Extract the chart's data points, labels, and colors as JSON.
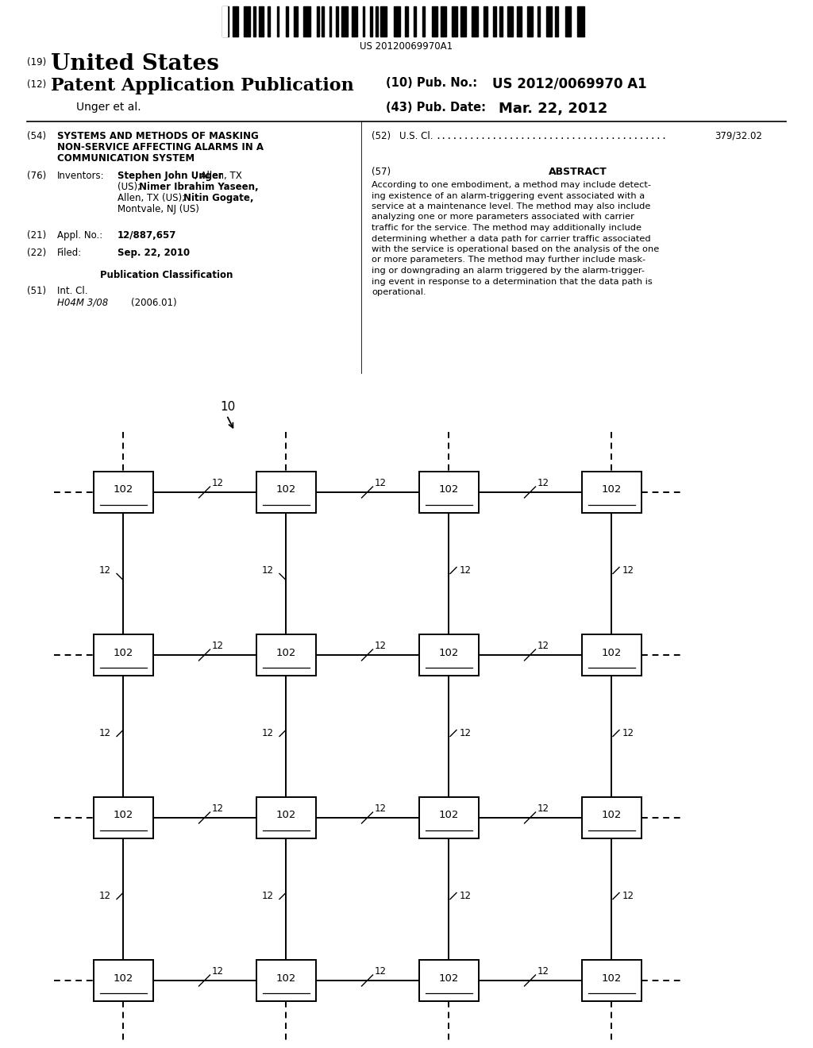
{
  "background_color": "#ffffff",
  "barcode_text": "US 20120069970A1",
  "header_country_num": "(19)",
  "header_country": "United States",
  "header_type_num": "(12)",
  "header_type": "Patent Application Publication",
  "header_pub_num_label": "(10) Pub. No.:",
  "header_pub_num": "US 2012/0069970 A1",
  "header_authors": "Unger et al.",
  "header_date_label": "(43) Pub. Date:",
  "header_date": "Mar. 22, 2012",
  "title_num": "(54)",
  "title_line1": "SYSTEMS AND METHODS OF MASKING",
  "title_line2": "NON-SERVICE AFFECTING ALARMS IN A",
  "title_line3": "COMMUNICATION SYSTEM",
  "inventors_num": "(76)",
  "inventors_label": "Inventors:",
  "inv1_bold": "Stephen John Unger",
  "inv1_rest": ", Allen, TX",
  "inv2_pre": "(US); ",
  "inv2_bold": "Nimer Ibrahim Yaseen,",
  "inv3_pre": "Allen, TX (US); ",
  "inv3_bold": "Nitin Gogate,",
  "inv4": "Montvale, NJ (US)",
  "appl_num": "(21)",
  "appl_label": "Appl. No.:",
  "appl_val": "12/887,657",
  "filed_num": "(22)",
  "filed_label": "Filed:",
  "filed_val": "Sep. 22, 2010",
  "pub_class_label": "Publication Classification",
  "int_cl_num": "(51)",
  "int_cl_label": "Int. Cl.",
  "int_cl_val": "H04M 3/08",
  "int_cl_year": "(2006.01)",
  "us_cl_num": "(52)",
  "us_cl_label": "U.S. Cl.",
  "us_cl_dots": ".........................................",
  "us_cl_val": "379/32.02",
  "abstract_num": "(57)",
  "abstract_title": "ABSTRACT",
  "abstract_text": "According to one embodiment, a method may include detecting existence of an alarm-triggering event associated with a service at a maintenance level. The method may also include analyzing one or more parameters associated with carrier traffic for the service. The method may additionally include determining whether a data path for carrier traffic associated with the service is operational based on the analysis of the one or more parameters. The method may further include masking or downgrading an alarm triggered by the alarm-triggering event in response to a determination that the data path is operational.",
  "diag_label_10": "10",
  "diag_node_label": "102",
  "diag_conn_label": "12",
  "diag_rows": 4,
  "diag_cols": 4
}
